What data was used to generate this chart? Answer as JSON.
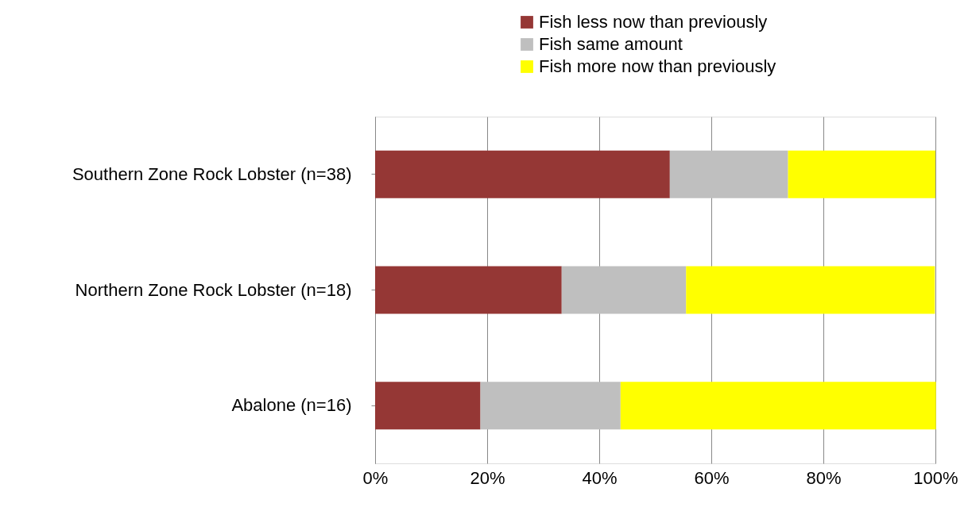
{
  "chart_data": {
    "type": "bar",
    "orientation": "horizontal",
    "stacked": true,
    "categories": [
      "Southern Zone Rock Lobster (n=38)",
      "Northern Zone Rock Lobster (n=18)",
      "Abalone (n=16)"
    ],
    "series": [
      {
        "name": "Fish less now than previously",
        "color": "#953735",
        "values": [
          52.6,
          33.3,
          18.8
        ]
      },
      {
        "name": "Fish same amount",
        "color": "#bfbfbf",
        "values": [
          21.1,
          22.2,
          25.0
        ]
      },
      {
        "name": "Fish more now than previously",
        "color": "#ffff00",
        "values": [
          26.3,
          44.4,
          56.3
        ]
      }
    ],
    "xlim": [
      0,
      100
    ],
    "xticks": [
      {
        "value": 0,
        "label": "0%"
      },
      {
        "value": 20,
        "label": "20%"
      },
      {
        "value": 40,
        "label": "40%"
      },
      {
        "value": 60,
        "label": "60%"
      },
      {
        "value": 80,
        "label": "80%"
      },
      {
        "value": 100,
        "label": "100%"
      }
    ],
    "grid": "x",
    "legend": "top"
  }
}
